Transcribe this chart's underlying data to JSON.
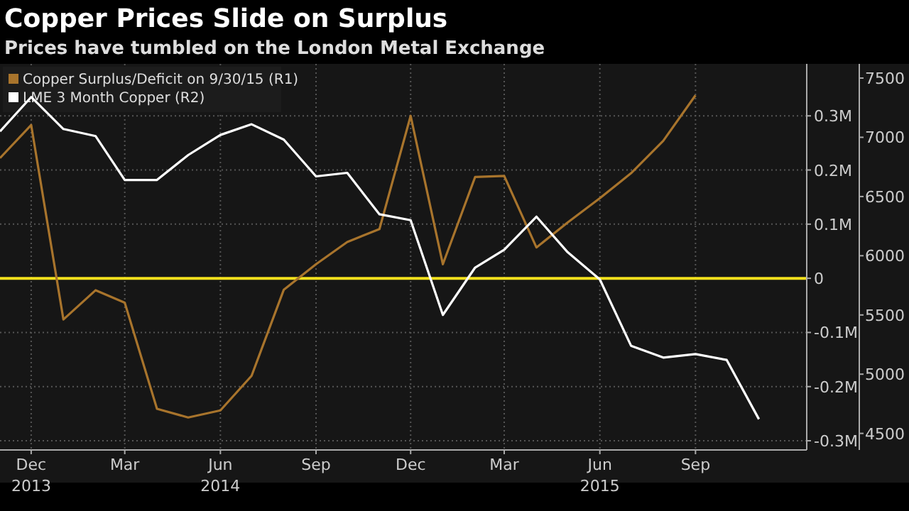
{
  "chart_data": {
    "type": "line",
    "title": "Copper Prices Slide on Surplus",
    "subtitle": "Prices have tumbled on the London Metal Exchange",
    "x": [
      "2013-11",
      "2013-12",
      "2014-01",
      "2014-02",
      "2014-03",
      "2014-04",
      "2014-05",
      "2014-06",
      "2014-07",
      "2014-08",
      "2014-09",
      "2014-10",
      "2014-11",
      "2014-12",
      "2015-01",
      "2015-02",
      "2015-03",
      "2015-04",
      "2015-05",
      "2015-06",
      "2015-07",
      "2015-08",
      "2015-09",
      "2015-10",
      "2015-11"
    ],
    "series": [
      {
        "name": "Copper Surplus/Deficit on 9/30/15 (R1)",
        "color": "#a8742c",
        "values": [
          0.222,
          0.283,
          -0.076,
          -0.022,
          -0.045,
          -0.241,
          -0.257,
          -0.244,
          -0.18,
          -0.021,
          0.026,
          0.067,
          0.091,
          0.3,
          0.026,
          0.187,
          0.189,
          0.057,
          0.103,
          0.148,
          0.194,
          0.254,
          0.338,
          null,
          null
        ]
      },
      {
        "name": "LME 3 Month Copper (R2)",
        "color": "#ffffff",
        "axis": "y2",
        "values": [
          7050,
          7340,
          7070,
          7010,
          6640,
          6640,
          6850,
          7020,
          7110,
          6980,
          6670,
          6700,
          6350,
          6300,
          5500,
          5900,
          6050,
          6330,
          6030,
          5800,
          5240,
          5140,
          5170,
          5120,
          4620
        ]
      }
    ],
    "xlim": [
      "2013-11-01",
      "2015-12-17"
    ],
    "xticks": [
      {
        "value": "2013-12",
        "label": "Dec\n2013"
      },
      {
        "value": "2014-03",
        "label": "Mar"
      },
      {
        "value": "2014-06",
        "label": "Jun\n2014"
      },
      {
        "value": "2014-09",
        "label": "Sep"
      },
      {
        "value": "2014-12",
        "label": "Dec"
      },
      {
        "value": "2015-03",
        "label": "Mar"
      },
      {
        "value": "2015-06",
        "label": "Jun\n2015"
      },
      {
        "value": "2015-09",
        "label": "Sep"
      }
    ],
    "ylim": [
      -0.317,
      0.396
    ],
    "yticks": [
      {
        "value": -0.3,
        "label": "-0.3M"
      },
      {
        "value": -0.2,
        "label": "-0.2M"
      },
      {
        "value": -0.1,
        "label": "-0.1M"
      },
      0,
      {
        "value": 0.1,
        "label": "0.1M"
      },
      {
        "value": 0.2,
        "label": "0.2M"
      },
      {
        "value": 0.3,
        "label": "0.3M"
      }
    ],
    "y2lim": [
      4360,
      7620
    ],
    "y2ticks": [
      4500,
      5000,
      5500,
      6000,
      6500,
      7000,
      7500
    ],
    "ref_lines": [
      {
        "axis": "y",
        "value": 0,
        "color": "#f2e01c"
      }
    ],
    "grid": true,
    "legend": "top left",
    "line_style": "solid",
    "marker": "none"
  }
}
